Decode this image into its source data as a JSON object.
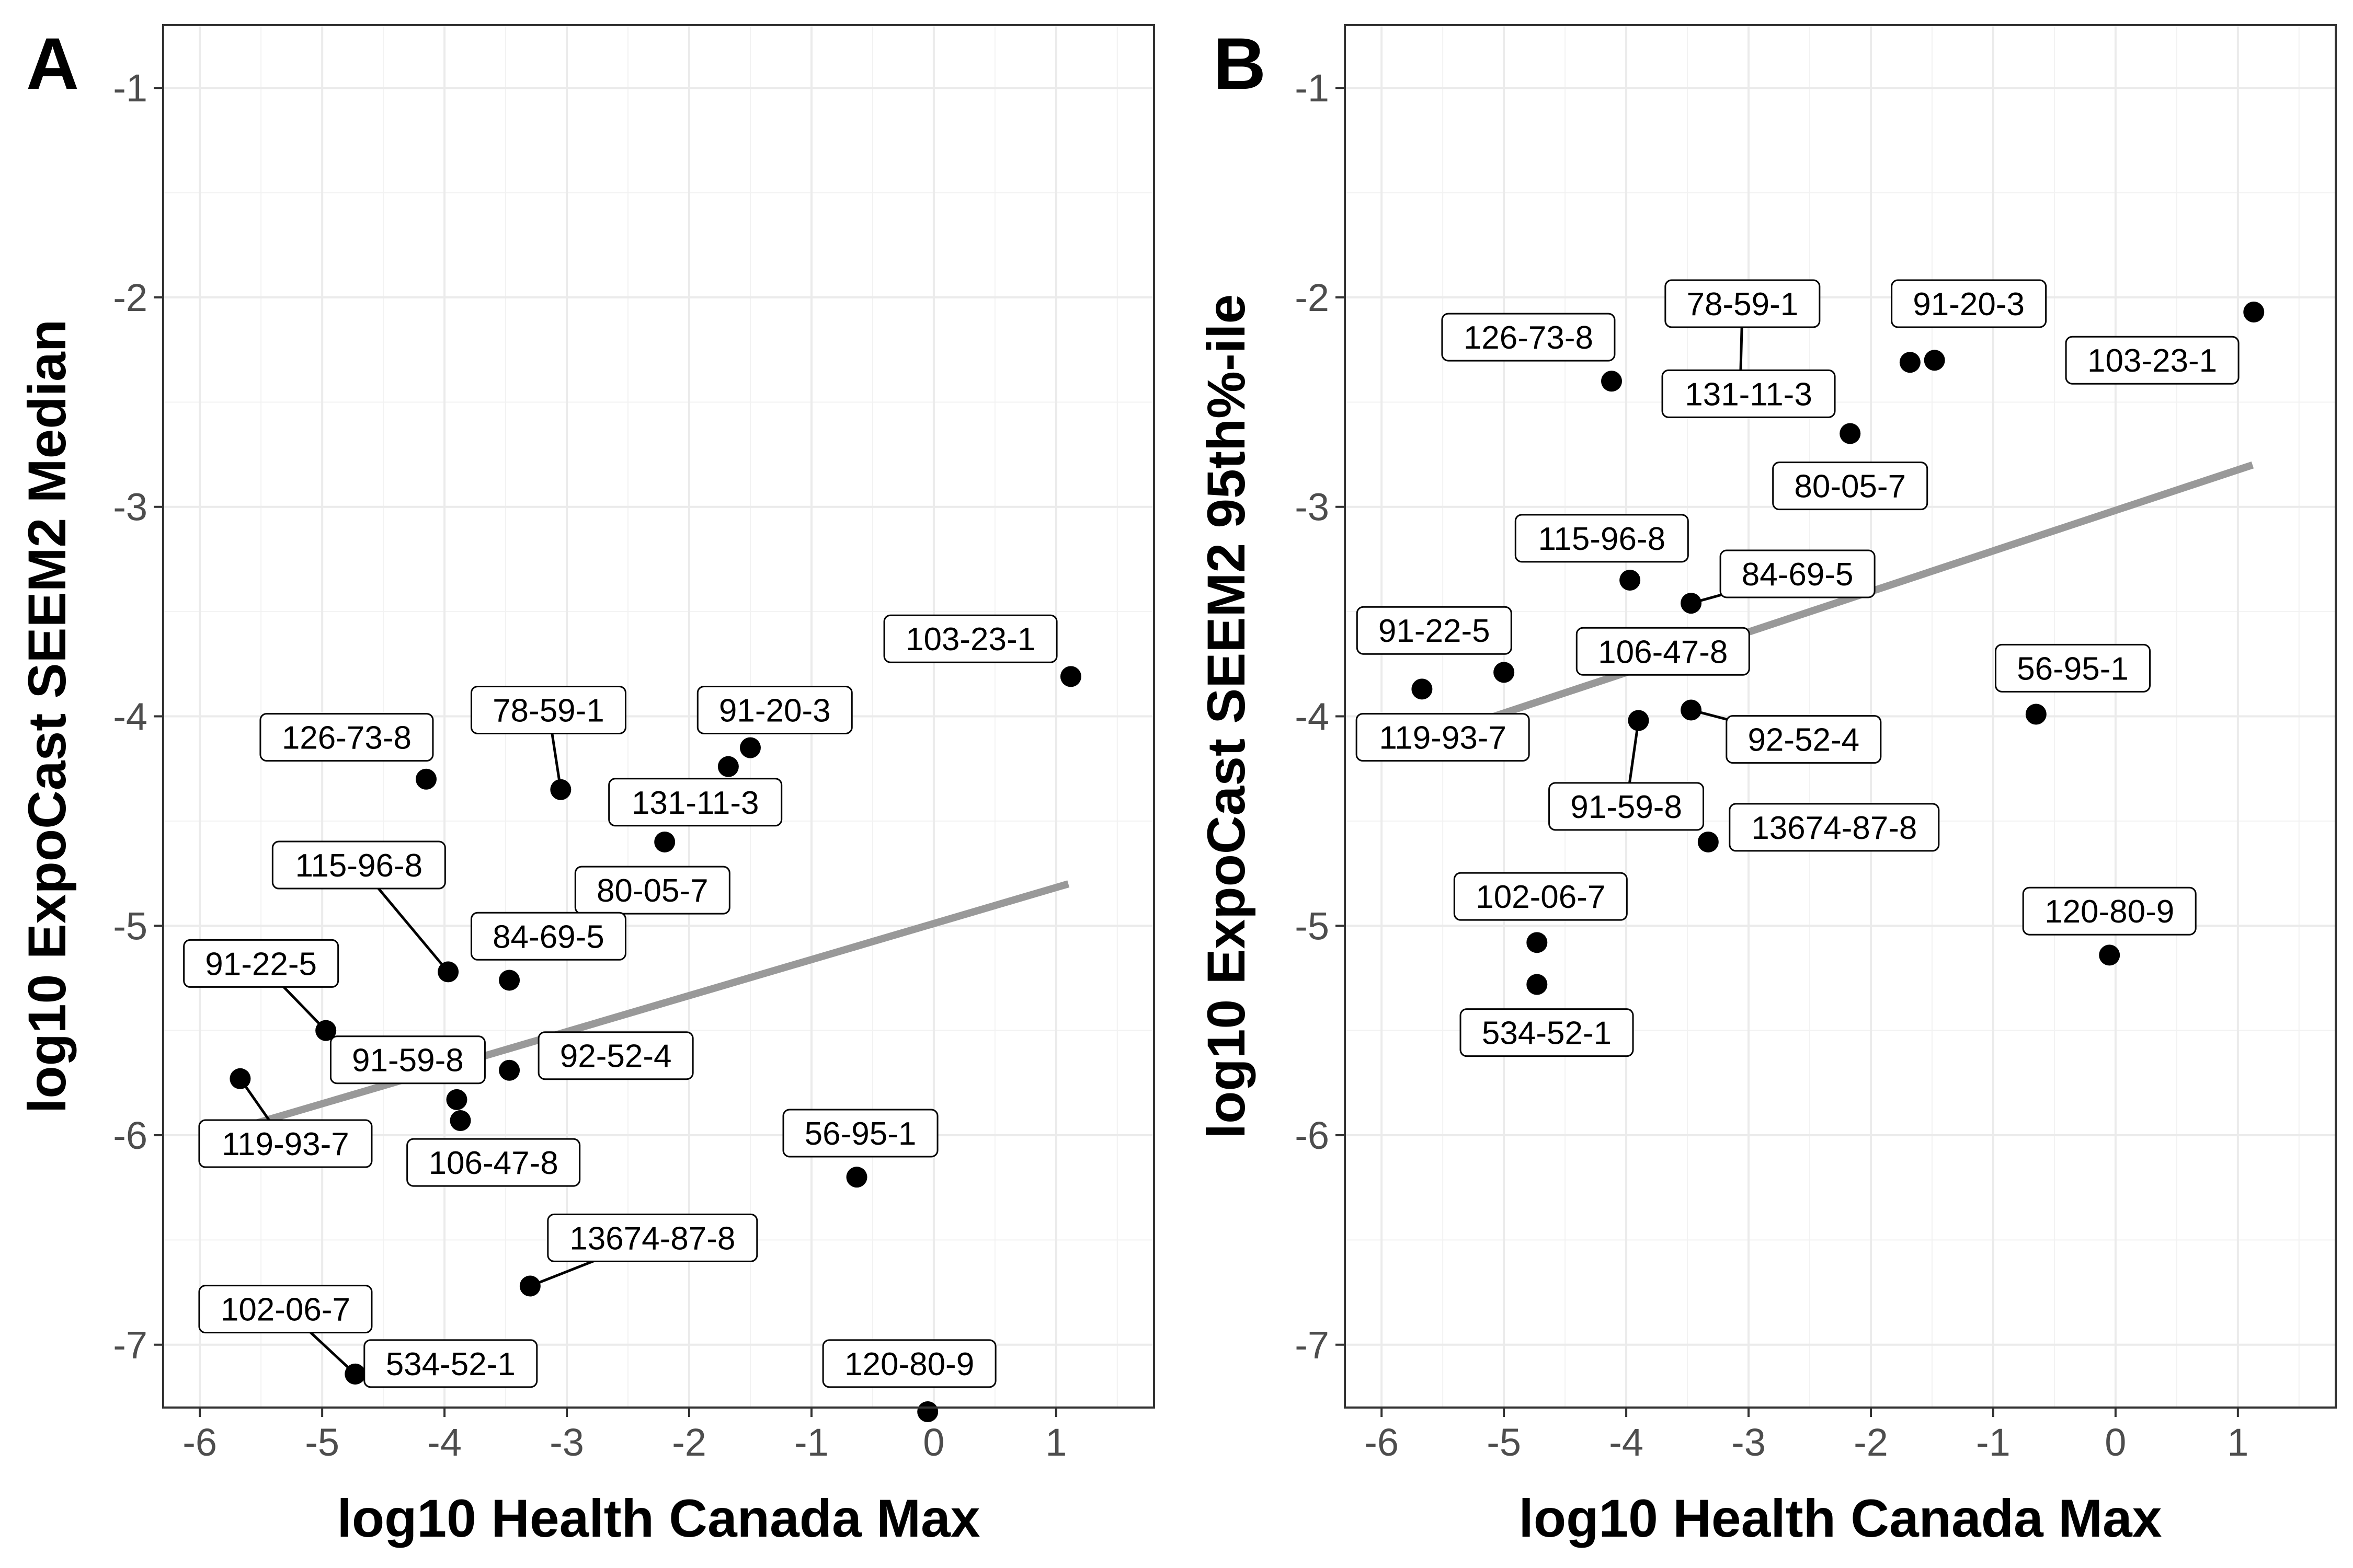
{
  "chart_data": [
    {
      "type": "scatter",
      "panel_tag": "A",
      "xlabel": "log10 Health Canada Max",
      "ylabel": "log10 ExpoCast SEEM2 Median",
      "xlim": [
        -6.3,
        1.8
      ],
      "ylim": [
        -7.3,
        -0.7
      ],
      "xticks": [
        -6,
        -5,
        -4,
        -3,
        -2,
        -1,
        0,
        1
      ],
      "yticks": [
        -1,
        -2,
        -3,
        -4,
        -5,
        -6,
        -7
      ],
      "grid": true,
      "fit_line": {
        "x": [
          -5.7,
          1.1
        ],
        "y": [
          -5.97,
          -4.8
        ],
        "color": "#999999"
      },
      "points": [
        {
          "label": "103-23-1",
          "x": 1.12,
          "y": -3.81,
          "lx": 0.3,
          "ly": -3.63
        },
        {
          "label": "126-73-8",
          "x": -4.15,
          "y": -4.3,
          "lx": -4.8,
          "ly": -4.1
        },
        {
          "label": "78-59-1",
          "x": -3.05,
          "y": -4.35,
          "lx": -3.15,
          "ly": -3.97,
          "leader": true
        },
        {
          "label": "91-20-3",
          "x": -1.5,
          "y": -4.15,
          "lx": -1.3,
          "ly": -3.97
        },
        {
          "label": "131-11-3",
          "x": -1.68,
          "y": -4.24,
          "lx": -1.95,
          "ly": -4.41
        },
        {
          "label": "80-05-7",
          "x": -2.2,
          "y": -4.6,
          "lx": -2.3,
          "ly": -4.83
        },
        {
          "label": "115-96-8",
          "x": -3.97,
          "y": -5.22,
          "lx": -4.7,
          "ly": -4.71,
          "leader": true
        },
        {
          "label": "84-69-5",
          "x": -3.47,
          "y": -5.26,
          "lx": -3.15,
          "ly": -5.05
        },
        {
          "label": "91-22-5",
          "x": -4.97,
          "y": -5.5,
          "lx": -5.5,
          "ly": -5.18,
          "leader": true
        },
        {
          "label": "91-59-8",
          "x": -3.9,
          "y": -5.83,
          "lx": -4.3,
          "ly": -5.64
        },
        {
          "label": "92-52-4",
          "x": -3.47,
          "y": -5.69,
          "lx": -2.6,
          "ly": -5.62
        },
        {
          "label": "106-47-8",
          "x": -3.87,
          "y": -5.93,
          "lx": -3.6,
          "ly": -6.13
        },
        {
          "label": "119-93-7",
          "x": -5.67,
          "y": -5.73,
          "lx": -5.3,
          "ly": -6.04,
          "leader": true
        },
        {
          "label": "56-95-1",
          "x": -0.63,
          "y": -6.2,
          "lx": -0.6,
          "ly": -5.99
        },
        {
          "label": "13674-87-8",
          "x": -3.3,
          "y": -6.72,
          "lx": -2.3,
          "ly": -6.49,
          "leader": true
        },
        {
          "label": "102-06-7",
          "x": -4.73,
          "y": -7.14,
          "lx": -5.3,
          "ly": -6.83,
          "leader": true
        },
        {
          "label": "534-52-1",
          "x": -4.73,
          "y": -7.14,
          "lx": -3.95,
          "ly": -7.09,
          "leader": true
        },
        {
          "label": "120-80-9",
          "x": -0.05,
          "y": -7.32,
          "lx": -0.2,
          "ly": -7.09
        }
      ]
    },
    {
      "type": "scatter",
      "panel_tag": "B",
      "xlabel": "log10 Health Canada Max",
      "ylabel": "log10 ExpoCast SEEM2 95th%-ile",
      "xlim": [
        -6.3,
        1.8
      ],
      "ylim": [
        -7.3,
        -0.7
      ],
      "xticks": [
        -6,
        -5,
        -4,
        -3,
        -2,
        -1,
        0,
        1
      ],
      "yticks": [
        -1,
        -2,
        -3,
        -4,
        -5,
        -6,
        -7
      ],
      "grid": true,
      "fit_line": {
        "x": [
          -5.7,
          1.12
        ],
        "y": [
          -4.12,
          -2.8
        ],
        "color": "#999999"
      },
      "points": [
        {
          "label": "103-23-1",
          "x": 1.13,
          "y": -2.07,
          "lx": 0.3,
          "ly": -2.3
        },
        {
          "label": "126-73-8",
          "x": -4.12,
          "y": -2.4,
          "lx": -4.8,
          "ly": -2.19
        },
        {
          "label": "78-59-1",
          "x": -3.07,
          "y": -2.47,
          "lx": -3.05,
          "ly": -2.03,
          "leader": true
        },
        {
          "label": "91-20-3",
          "x": -1.48,
          "y": -2.3,
          "lx": -1.2,
          "ly": -2.03
        },
        {
          "label": "91-20-3-b",
          "hidden_label": true,
          "x": -1.68,
          "y": -2.31
        },
        {
          "label": "131-11-3",
          "x": -3.07,
          "y": -2.47,
          "lx": -3.0,
          "ly": -2.46
        },
        {
          "label": "80-05-7",
          "x": -2.17,
          "y": -2.65,
          "lx": -2.17,
          "ly": -2.9
        },
        {
          "label": "115-96-8",
          "x": -3.97,
          "y": -3.35,
          "lx": -4.2,
          "ly": -3.15
        },
        {
          "label": "84-69-5",
          "x": -3.47,
          "y": -3.46,
          "lx": -2.6,
          "ly": -3.32,
          "leader": true
        },
        {
          "label": "91-22-5",
          "x": -5.0,
          "y": -3.79,
          "lx": -5.57,
          "ly": -3.59
        },
        {
          "label": "106-47-8",
          "x": -3.9,
          "y": -4.02,
          "lx": -3.7,
          "ly": -3.69
        },
        {
          "label": "119-93-7",
          "x": -5.67,
          "y": -3.87,
          "lx": -5.5,
          "ly": -4.1
        },
        {
          "label": "92-52-4",
          "x": -3.47,
          "y": -3.97,
          "lx": -2.55,
          "ly": -4.11,
          "leader": true
        },
        {
          "label": "91-59-8",
          "x": -3.9,
          "y": -4.02,
          "lx": -4.0,
          "ly": -4.43,
          "leader": true
        },
        {
          "label": "13674-87-8",
          "x": -3.33,
          "y": -4.6,
          "lx": -2.3,
          "ly": -4.53
        },
        {
          "label": "56-95-1",
          "x": -0.65,
          "y": -3.99,
          "lx": -0.35,
          "ly": -3.77
        },
        {
          "label": "102-06-7",
          "x": -4.73,
          "y": -5.08,
          "lx": -4.7,
          "ly": -4.86
        },
        {
          "label": "534-52-1",
          "x": -4.73,
          "y": -5.28,
          "lx": -4.65,
          "ly": -5.51
        },
        {
          "label": "120-80-9",
          "x": -0.05,
          "y": -5.14,
          "lx": -0.05,
          "ly": -4.93
        }
      ]
    }
  ]
}
